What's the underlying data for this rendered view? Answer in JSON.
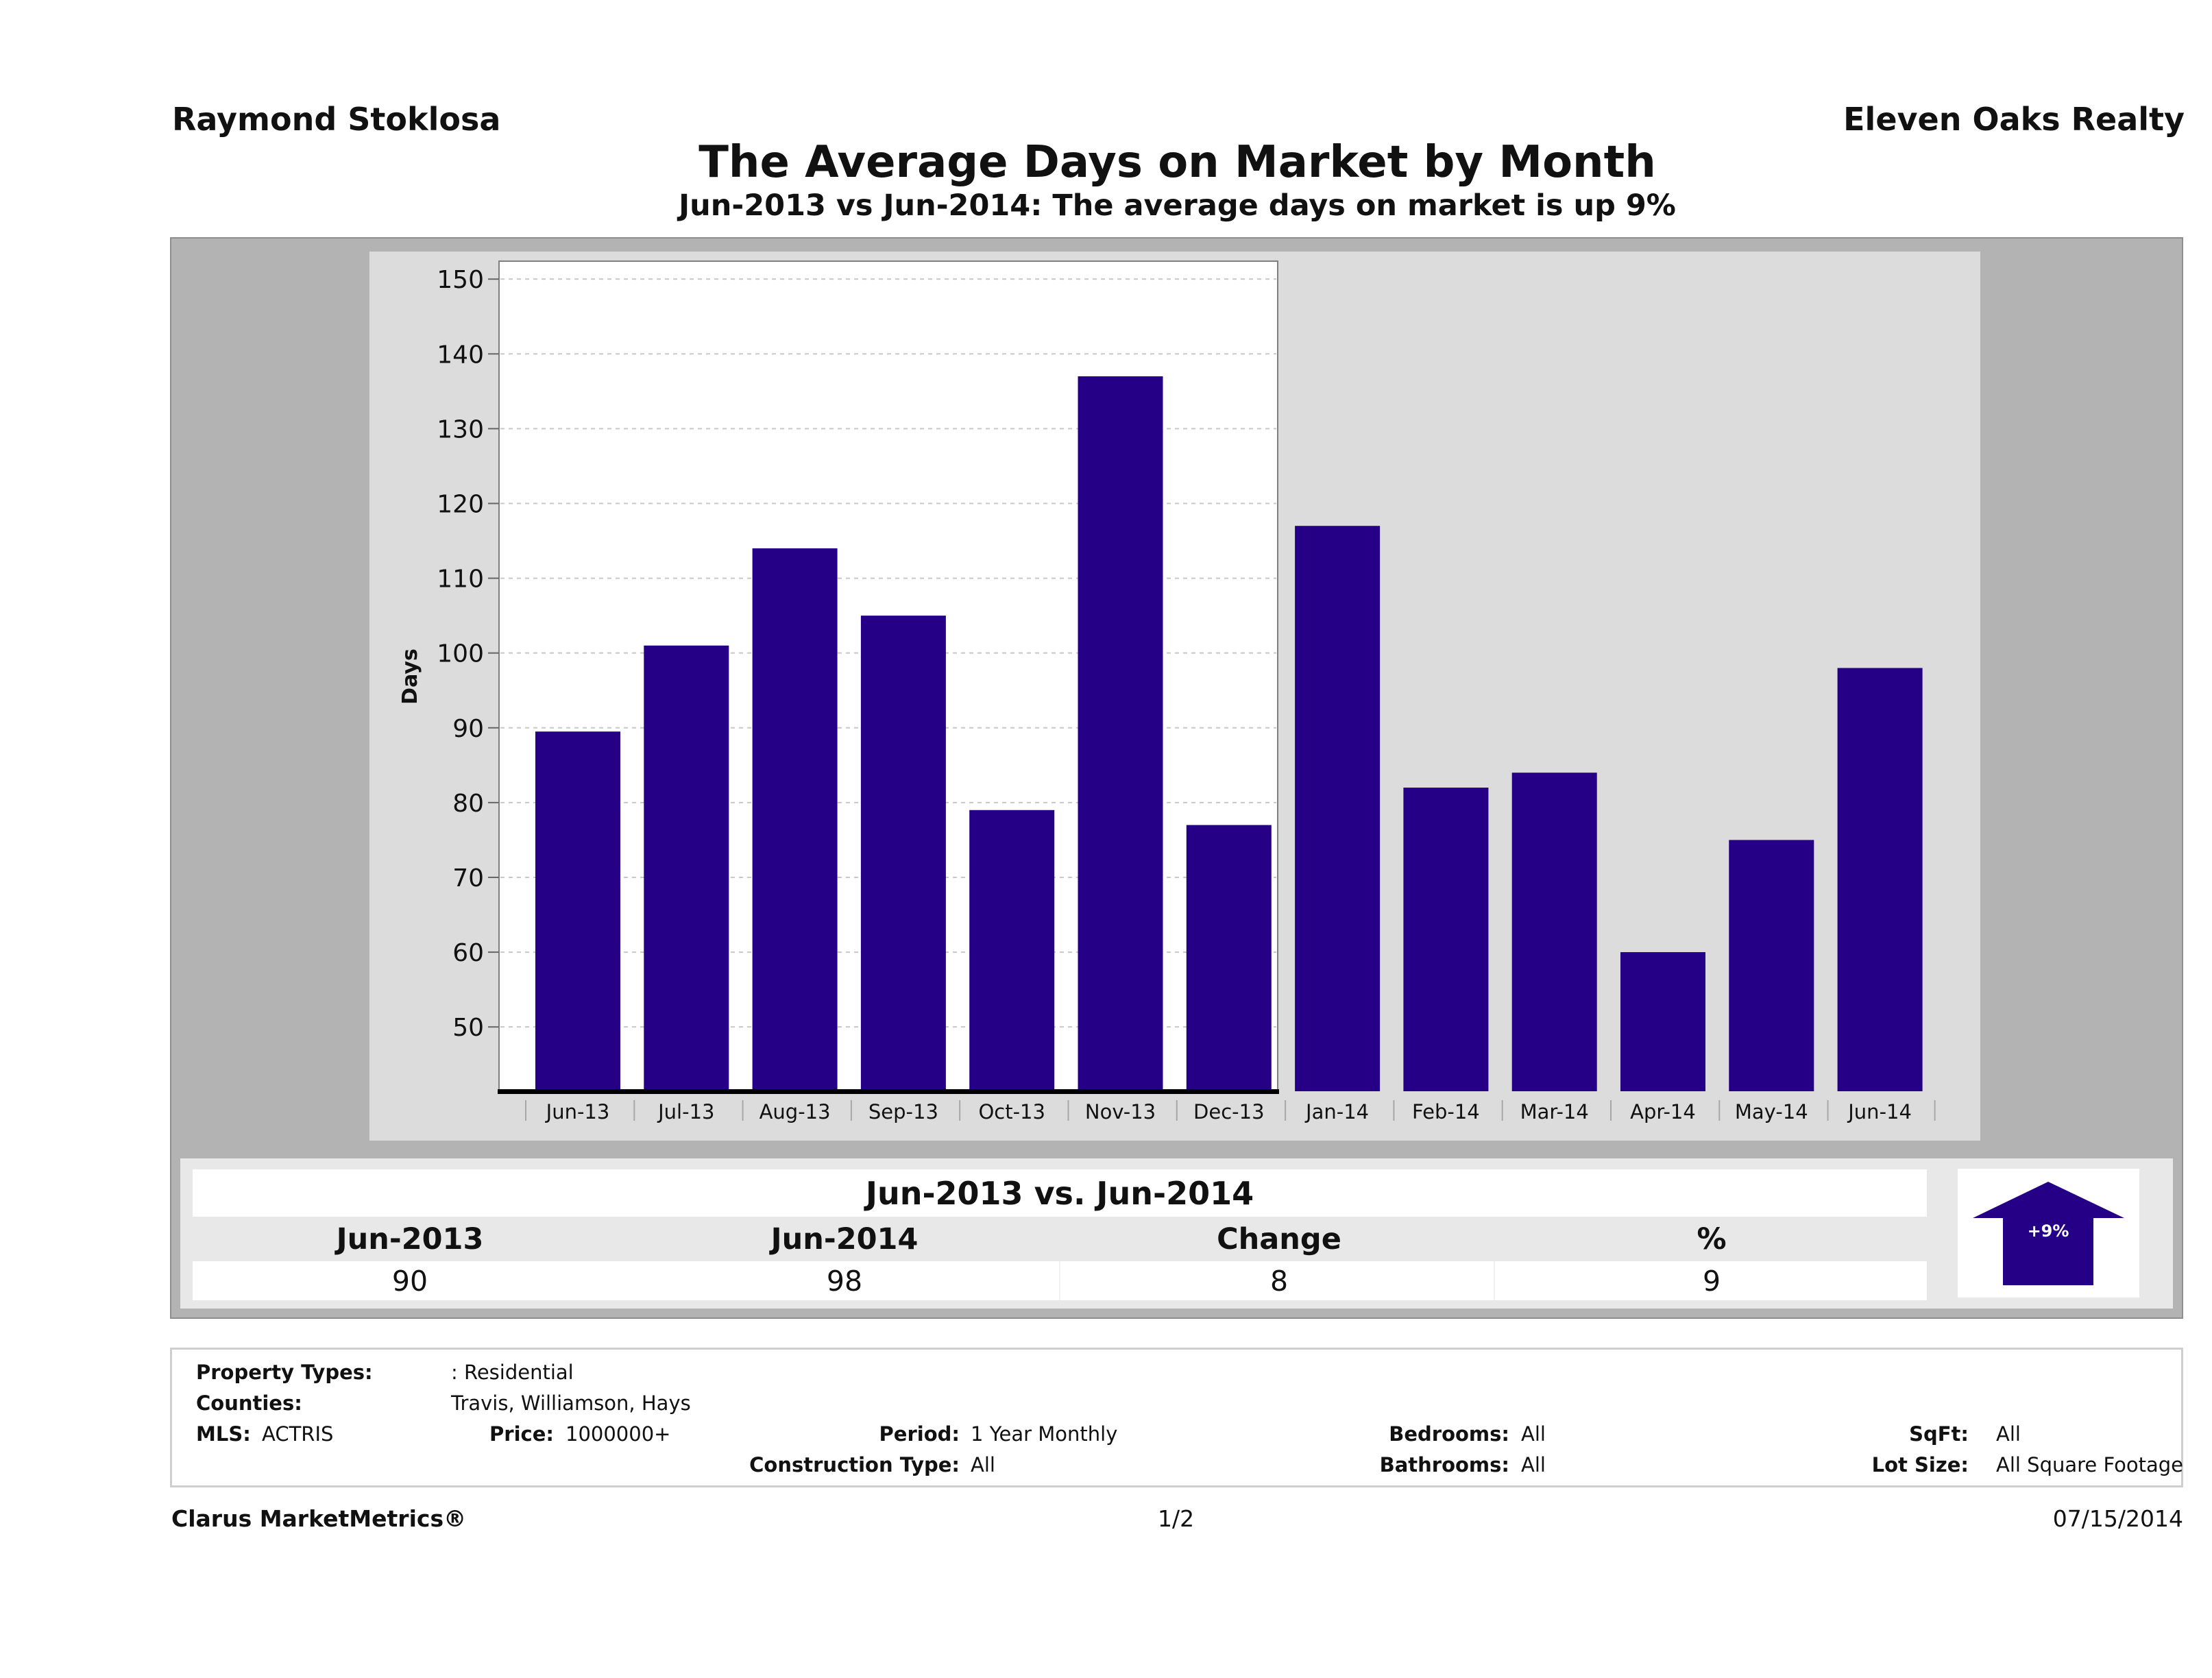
{
  "header": {
    "agent_name": "Raymond Stoklosa",
    "brokerage": "Eleven Oaks Realty",
    "title": "The Average Days on Market by Month",
    "subtitle": "Jun-2013 vs Jun-2014: The average days on market is up 9%"
  },
  "colors": {
    "bar": "#250087",
    "panel_outer": "#b3b3b3",
    "panel_chart": "#dcdcdc",
    "plot_bg": "#ffffff",
    "grid": "#c8c8c8",
    "summary_bg": "#e8e8e8"
  },
  "chart_data": {
    "type": "bar",
    "title": "The Average Days on Market by Month",
    "subtitle": "Jun-2013 vs Jun-2014: The average days on market is up 9%",
    "xlabel": "",
    "ylabel": "Days",
    "categories": [
      "Jun-13",
      "Jul-13",
      "Aug-13",
      "Sep-13",
      "Oct-13",
      "Nov-13",
      "Dec-13",
      "Jan-14",
      "Feb-14",
      "Mar-14",
      "Apr-14",
      "May-14",
      "Jun-14"
    ],
    "values": [
      89.5,
      101,
      114,
      105,
      79,
      137,
      77,
      117,
      82,
      84,
      60,
      75,
      98
    ],
    "ylim": [
      41.4,
      152.4
    ],
    "yticks": [
      50,
      60,
      70,
      80,
      90,
      100,
      110,
      120,
      130,
      140,
      150
    ],
    "ytick_labels": [
      "50",
      "60",
      "70",
      "80",
      "90",
      "100",
      "110",
      "120",
      "130",
      "140",
      "150"
    ],
    "grid": true,
    "legend": "none"
  },
  "summary": {
    "title": "Jun-2013 vs. Jun-2014",
    "headers": [
      "Jun-2013",
      "Jun-2014",
      "Change",
      "%"
    ],
    "values": [
      "90",
      "98",
      "8",
      "9"
    ],
    "badge": "+9%",
    "direction": "up"
  },
  "details": {
    "property_types_label": "Property Types:",
    "property_types_value": ": Residential",
    "counties_label": "Counties:",
    "counties_value": "Travis, Williamson, Hays",
    "mls_label": "MLS:",
    "mls_value": "ACTRIS",
    "price_label": "Price:",
    "price_value": "1000000+",
    "period_label": "Period:",
    "period_value": "1 Year Monthly",
    "construction_label": "Construction Type:",
    "construction_value": "All",
    "bedrooms_label": "Bedrooms:",
    "bedrooms_value": "All",
    "bathrooms_label": "Bathrooms:",
    "bathrooms_value": "All",
    "sqft_label": "SqFt:",
    "sqft_value": "All",
    "lot_size_label": "Lot Size:",
    "lot_size_value": "All Square Footage"
  },
  "footer": {
    "brand": "Clarus MarketMetrics®",
    "page": "1/2",
    "date": "07/15/2014"
  }
}
